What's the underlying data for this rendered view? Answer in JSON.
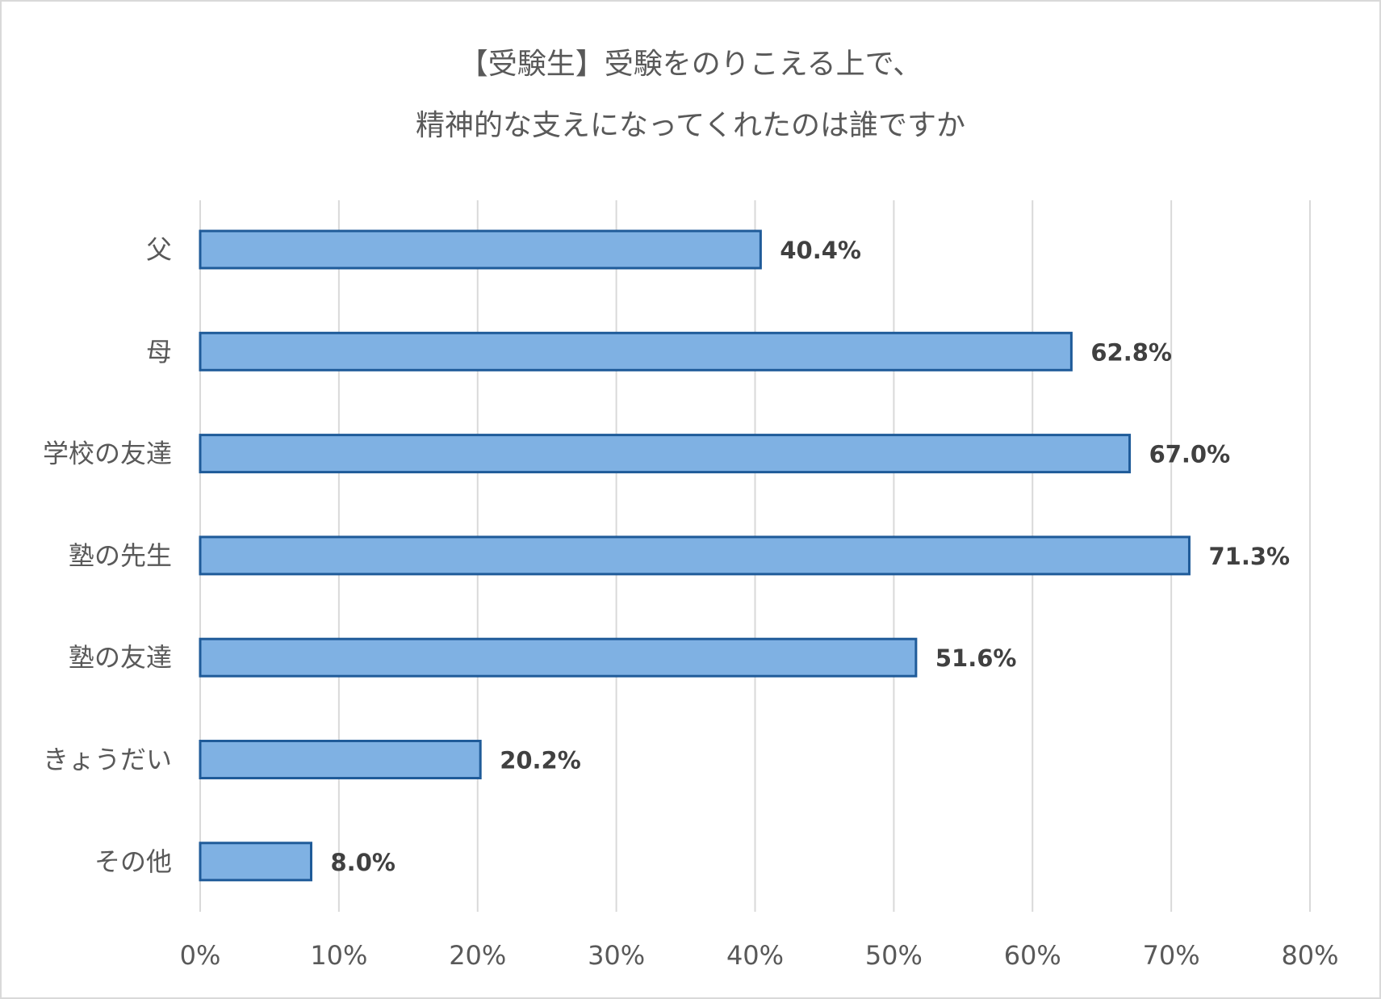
{
  "chart_data": {
    "type": "bar",
    "orientation": "horizontal",
    "title": [
      "【受験生】受験をのりこえる上で、",
      "精神的な支えになってくれたのは誰ですか"
    ],
    "categories": [
      "父",
      "母",
      "学校の友達",
      "塾の先生",
      "塾の友達",
      "きょうだい",
      "その他"
    ],
    "values": [
      40.4,
      62.8,
      67.0,
      71.3,
      51.6,
      20.2,
      8.0
    ],
    "data_labels": [
      "40.4%",
      "62.8%",
      "67.0%",
      "71.3%",
      "51.6%",
      "20.2%",
      "8.0%"
    ],
    "xlim": [
      0,
      80
    ],
    "xticks": [
      0,
      10,
      20,
      30,
      40,
      50,
      60,
      70,
      80
    ],
    "xtick_labels": [
      "0%",
      "10%",
      "20%",
      "30%",
      "40%",
      "50%",
      "60%",
      "70%",
      "80%"
    ],
    "xlabel": "",
    "ylabel": "",
    "grid": true,
    "colors": {
      "bar_fill": "#7fb1e3",
      "bar_edge": "#1f5b99",
      "grid": "#d9d9d9",
      "text": "#595959",
      "label": "#404040"
    }
  }
}
